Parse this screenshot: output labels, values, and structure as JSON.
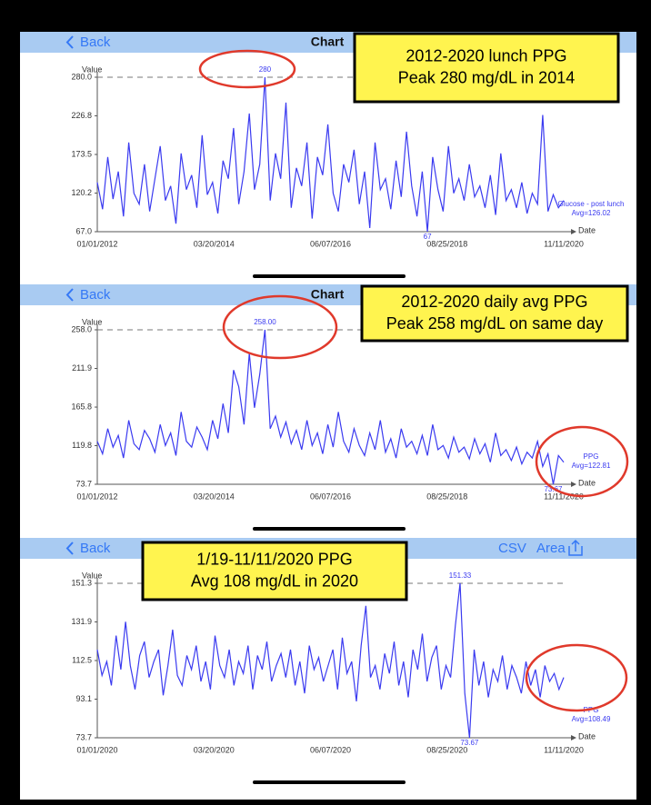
{
  "nav": [
    {
      "back": "Back",
      "title": "Chart"
    },
    {
      "back": "Back",
      "title": "Chart"
    },
    {
      "back": "Back",
      "actions": [
        "CSV",
        "Area"
      ]
    }
  ],
  "callouts": [
    [
      "2012-2020 lunch PPG",
      "Peak 280 mg/dL in 2014"
    ],
    [
      "2012-2020 daily avg PPG",
      "Peak 258 mg/dL on same day"
    ],
    [
      "1/19-11/11/2020 PPG",
      "Avg 108 mg/dL in 2020"
    ]
  ],
  "chart_data": [
    {
      "type": "line",
      "y_label": "Value",
      "x_label": "Date",
      "max_label": "280",
      "min_label": "67",
      "legend_note": "Avg=126.02",
      "xticks": [
        "01/01/2012",
        "03/20/2014",
        "06/07/2016",
        "08/25/2018",
        "11/11/2020"
      ],
      "ylim": [
        67,
        280
      ],
      "yticks": [
        {
          "value": 67,
          "label": "67.0"
        },
        120.2,
        173.5,
        226.8,
        {
          "value": 280,
          "label": "280.0"
        }
      ],
      "series": [
        {
          "name": "Glucose - post lunch",
          "color": "#3a3af0",
          "values": [
            135,
            98,
            170,
            112,
            150,
            88,
            190,
            120,
            105,
            160,
            95,
            140,
            185,
            110,
            130,
            78,
            175,
            125,
            145,
            100,
            200,
            118,
            135,
            92,
            165,
            140,
            210,
            105,
            150,
            230,
            125,
            160,
            280,
            110,
            175,
            140,
            245,
            100,
            155,
            130,
            190,
            85,
            170,
            145,
            215,
            120,
            95,
            160,
            135,
            180,
            105,
            150,
            72,
            190,
            125,
            140,
            98,
            165,
            115,
            205,
            130,
            88,
            150,
            67,
            170,
            125,
            95,
            185,
            120,
            140,
            110,
            160,
            115,
            130,
            100,
            145,
            90,
            175,
            110,
            125,
            100,
            135,
            92,
            120,
            105,
            228,
            95,
            118,
            100,
            110
          ]
        }
      ]
    },
    {
      "type": "line",
      "y_label": "Value",
      "x_label": "Date",
      "max_label": "258.00",
      "min_label": "73.67",
      "legend_note": "Avg=122.81",
      "xticks": [
        "01/01/2012",
        "03/20/2014",
        "06/07/2016",
        "08/25/2018",
        "11/11/2020"
      ],
      "ylim": [
        73.7,
        258
      ],
      "yticks": [
        73.7,
        119.8,
        165.8,
        211.9,
        {
          "value": 258,
          "label": "258.0"
        }
      ],
      "series": [
        {
          "name": "PPG",
          "color": "#3a3af0",
          "values": [
            125,
            110,
            140,
            118,
            132,
            105,
            150,
            122,
            115,
            138,
            128,
            112,
            145,
            120,
            135,
            108,
            160,
            125,
            118,
            142,
            130,
            115,
            150,
            128,
            170,
            135,
            210,
            190,
            145,
            230,
            165,
            205,
            258,
            140,
            155,
            130,
            148,
            122,
            138,
            115,
            150,
            120,
            135,
            110,
            145,
            118,
            160,
            125,
            112,
            140,
            120,
            108,
            135,
            115,
            150,
            112,
            128,
            105,
            140,
            118,
            125,
            110,
            132,
            108,
            145,
            115,
            120,
            105,
            130,
            112,
            118,
            104,
            128,
            110,
            122,
            100,
            135,
            108,
            115,
            102,
            118,
            98,
            112,
            105,
            125,
            95,
            110,
            73.67,
            108,
            100
          ]
        }
      ]
    },
    {
      "type": "line",
      "y_label": "Value",
      "x_label": "Date",
      "max_label": "151.33",
      "min_label": "73.67",
      "legend_note": "Avg=108.49",
      "xticks": [
        "01/01/2020",
        "03/20/2020",
        "06/07/2020",
        "08/25/2020",
        "11/11/2020"
      ],
      "ylim": [
        73.7,
        151.3
      ],
      "yticks": [
        73.7,
        93.1,
        112.5,
        131.9,
        151.3
      ],
      "series": [
        {
          "name": "PPG",
          "color": "#3a3af0",
          "values": [
            118,
            105,
            112,
            100,
            125,
            108,
            132,
            110,
            98,
            115,
            122,
            104,
            112,
            118,
            95,
            110,
            128,
            105,
            100,
            115,
            108,
            120,
            102,
            112,
            98,
            125,
            110,
            104,
            118,
            100,
            112,
            106,
            120,
            98,
            115,
            108,
            122,
            102,
            110,
            116,
            104,
            118,
            100,
            112,
            96,
            120,
            108,
            114,
            102,
            110,
            118,
            98,
            124,
            106,
            112,
            92,
            120,
            140,
            104,
            110,
            98,
            116,
            106,
            122,
            100,
            112,
            94,
            118,
            108,
            126,
            102,
            114,
            120,
            98,
            110,
            104,
            130,
            151.33,
            96,
            73.67,
            118,
            100,
            112,
            94,
            108,
            102,
            115,
            98,
            110,
            104,
            96,
            112,
            100,
            108,
            94,
            110,
            102,
            106,
            98,
            104
          ]
        }
      ]
    }
  ]
}
